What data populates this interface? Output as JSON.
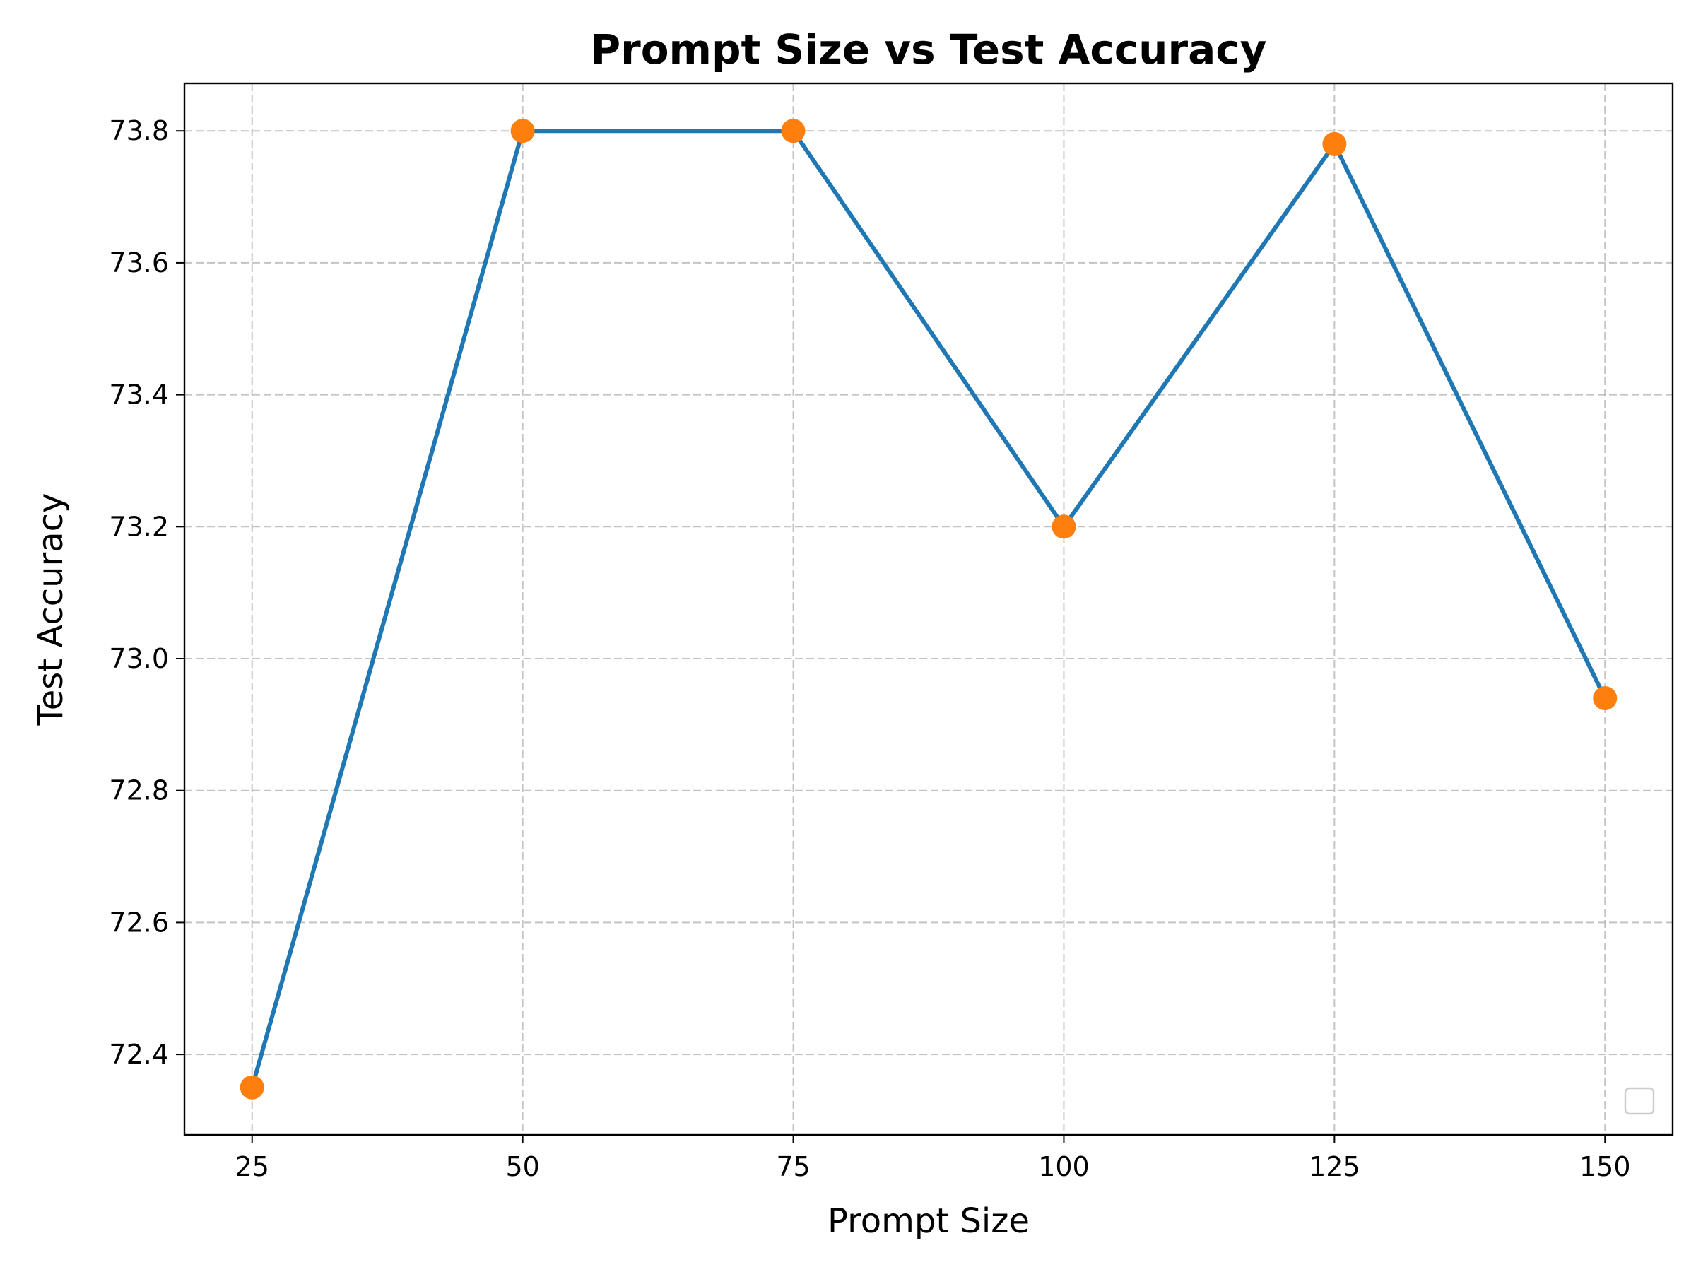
{
  "chart_data": {
    "type": "line",
    "title": "Prompt Size vs Test Accuracy",
    "xlabel": "Prompt Size",
    "ylabel": "Test Accuracy",
    "x": [
      25,
      50,
      75,
      100,
      125,
      150
    ],
    "y": [
      72.35,
      73.8,
      73.8,
      73.2,
      73.78,
      72.94
    ],
    "xticks": [
      25,
      50,
      75,
      100,
      125,
      150
    ],
    "xtick_labels": [
      "25",
      "50",
      "75",
      "100",
      "125",
      "150"
    ],
    "yticks": [
      72.4,
      72.6,
      72.8,
      73.0,
      73.2,
      73.4,
      73.6,
      73.8
    ],
    "ytick_labels": [
      "72.4",
      "72.6",
      "72.8",
      "73.0",
      "73.2",
      "73.4",
      "73.6",
      "73.8"
    ],
    "xlim": [
      18.75,
      156.25
    ],
    "ylim": [
      72.278,
      73.872
    ],
    "grid": true,
    "legend": "lower-right (empty)",
    "colors": {
      "line": "#1f77b4",
      "markers": "#ff7f0e"
    }
  }
}
